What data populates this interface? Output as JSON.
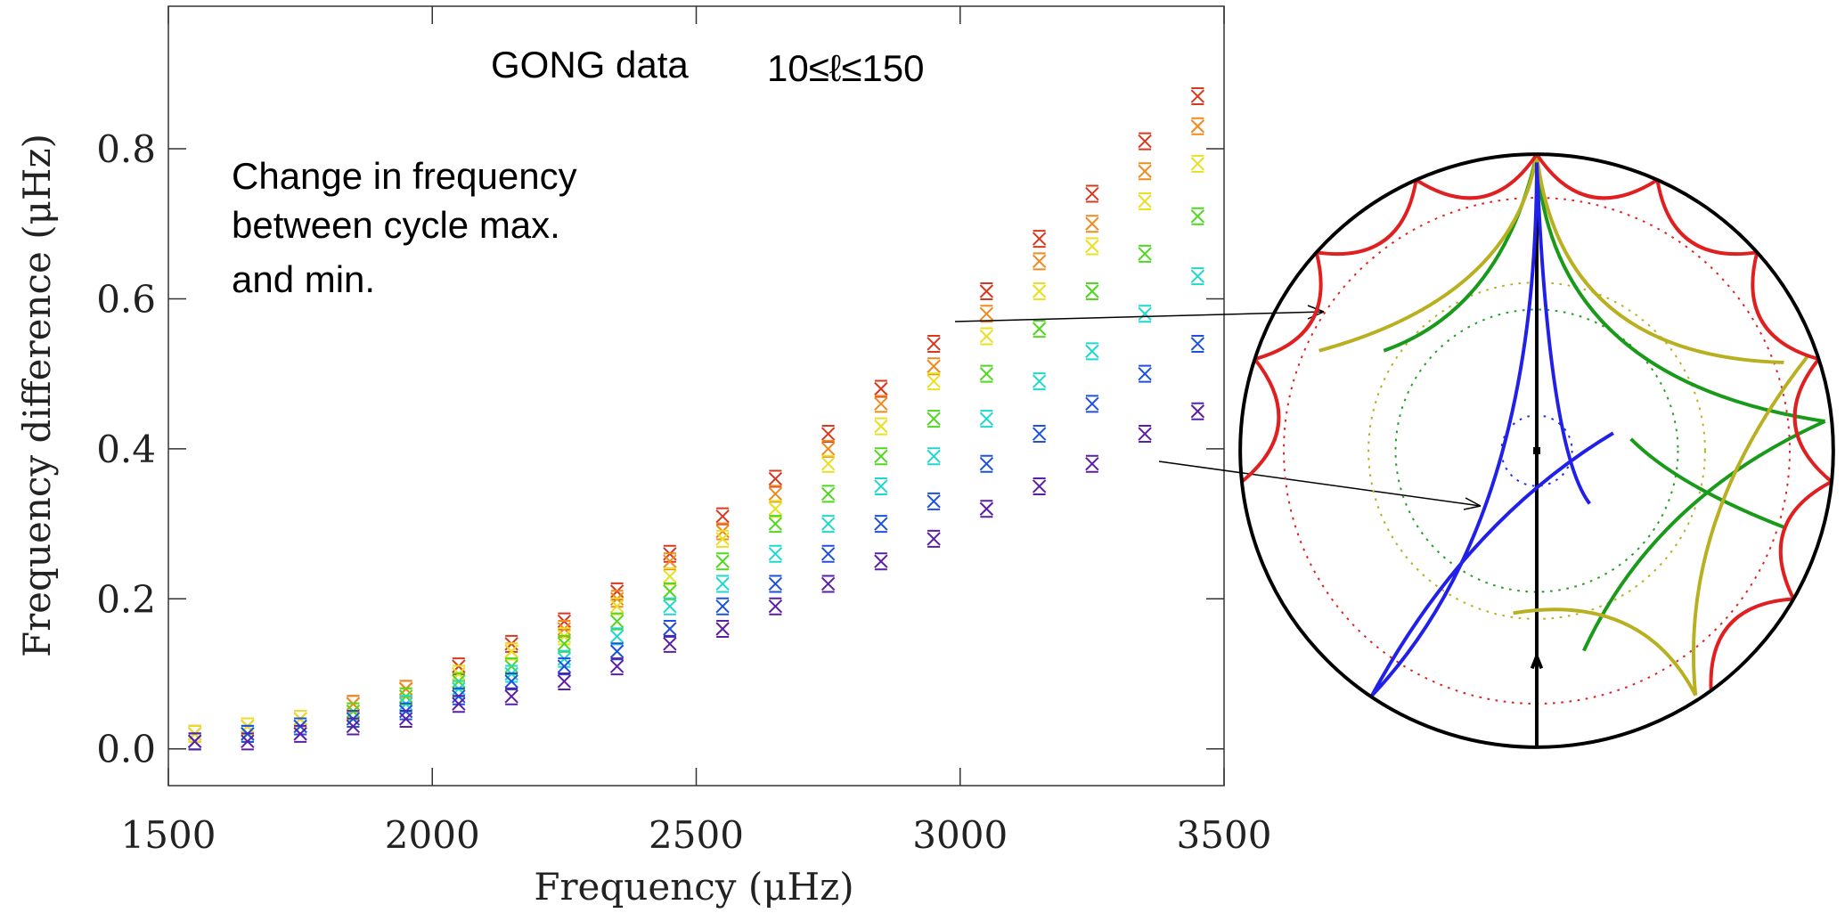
{
  "chart_data": {
    "type": "scatter",
    "title": "GONG data",
    "subtitle": "10≤ℓ≤150",
    "annotation": [
      "Change in frequency",
      "between cycle max.",
      "and min."
    ],
    "xlabel": "Frequency (μHz)",
    "ylabel": "Frequency difference (μHz)",
    "x": [
      1550,
      1650,
      1750,
      1850,
      1950,
      2050,
      2150,
      2250,
      2350,
      2450,
      2550,
      2650,
      2750,
      2850,
      2950,
      3050,
      3150,
      3250,
      3350,
      3450
    ],
    "series": [
      {
        "color": "#d9381e",
        "values": [
          0.02,
          0.03,
          0.04,
          0.06,
          0.08,
          0.11,
          0.14,
          0.17,
          0.21,
          0.26,
          0.31,
          0.36,
          0.42,
          0.48,
          0.54,
          0.61,
          0.68,
          0.74,
          0.81,
          0.87
        ]
      },
      {
        "color": "#f08a1c",
        "values": [
          0.02,
          0.03,
          0.04,
          0.06,
          0.08,
          0.1,
          0.13,
          0.16,
          0.2,
          0.25,
          0.29,
          0.34,
          0.4,
          0.46,
          0.51,
          0.58,
          0.65,
          0.7,
          0.77,
          0.83
        ]
      },
      {
        "color": "#e8e020",
        "values": [
          0.02,
          0.03,
          0.04,
          0.05,
          0.07,
          0.1,
          0.13,
          0.15,
          0.19,
          0.23,
          0.28,
          0.32,
          0.38,
          0.43,
          0.49,
          0.55,
          0.61,
          0.67,
          0.73,
          0.78
        ]
      },
      {
        "color": "#4ed81e",
        "values": [
          0.01,
          0.02,
          0.03,
          0.05,
          0.07,
          0.09,
          0.11,
          0.14,
          0.17,
          0.21,
          0.25,
          0.3,
          0.34,
          0.39,
          0.44,
          0.5,
          0.56,
          0.61,
          0.66,
          0.71
        ]
      },
      {
        "color": "#1ed8d0",
        "values": [
          0.01,
          0.02,
          0.03,
          0.04,
          0.06,
          0.08,
          0.1,
          0.12,
          0.15,
          0.19,
          0.22,
          0.26,
          0.3,
          0.35,
          0.39,
          0.44,
          0.49,
          0.53,
          0.58,
          0.63
        ]
      },
      {
        "color": "#1e50e0",
        "values": [
          0.01,
          0.02,
          0.03,
          0.04,
          0.05,
          0.07,
          0.09,
          0.11,
          0.13,
          0.16,
          0.19,
          0.22,
          0.26,
          0.3,
          0.33,
          0.38,
          0.42,
          0.46,
          0.5,
          0.54
        ]
      },
      {
        "color": "#5a1ea8",
        "values": [
          0.01,
          0.01,
          0.02,
          0.03,
          0.04,
          0.06,
          0.07,
          0.09,
          0.11,
          0.14,
          0.16,
          0.19,
          0.22,
          0.25,
          0.28,
          0.32,
          0.35,
          0.38,
          0.42,
          0.45
        ]
      }
    ],
    "xlim": [
      1500,
      3500
    ],
    "ylim": [
      -0.049,
      0.99
    ],
    "xticks": [
      1500,
      2000,
      2500,
      3000,
      3500
    ],
    "yticks": [
      {
        "value": 0,
        "label": "0.0"
      },
      {
        "value": 0.2,
        "label": "0.2"
      },
      {
        "value": 0.4,
        "label": "0.4"
      },
      {
        "value": 0.6,
        "label": "0.6"
      },
      {
        "value": 0.8,
        "label": "0.8"
      }
    ]
  }
}
